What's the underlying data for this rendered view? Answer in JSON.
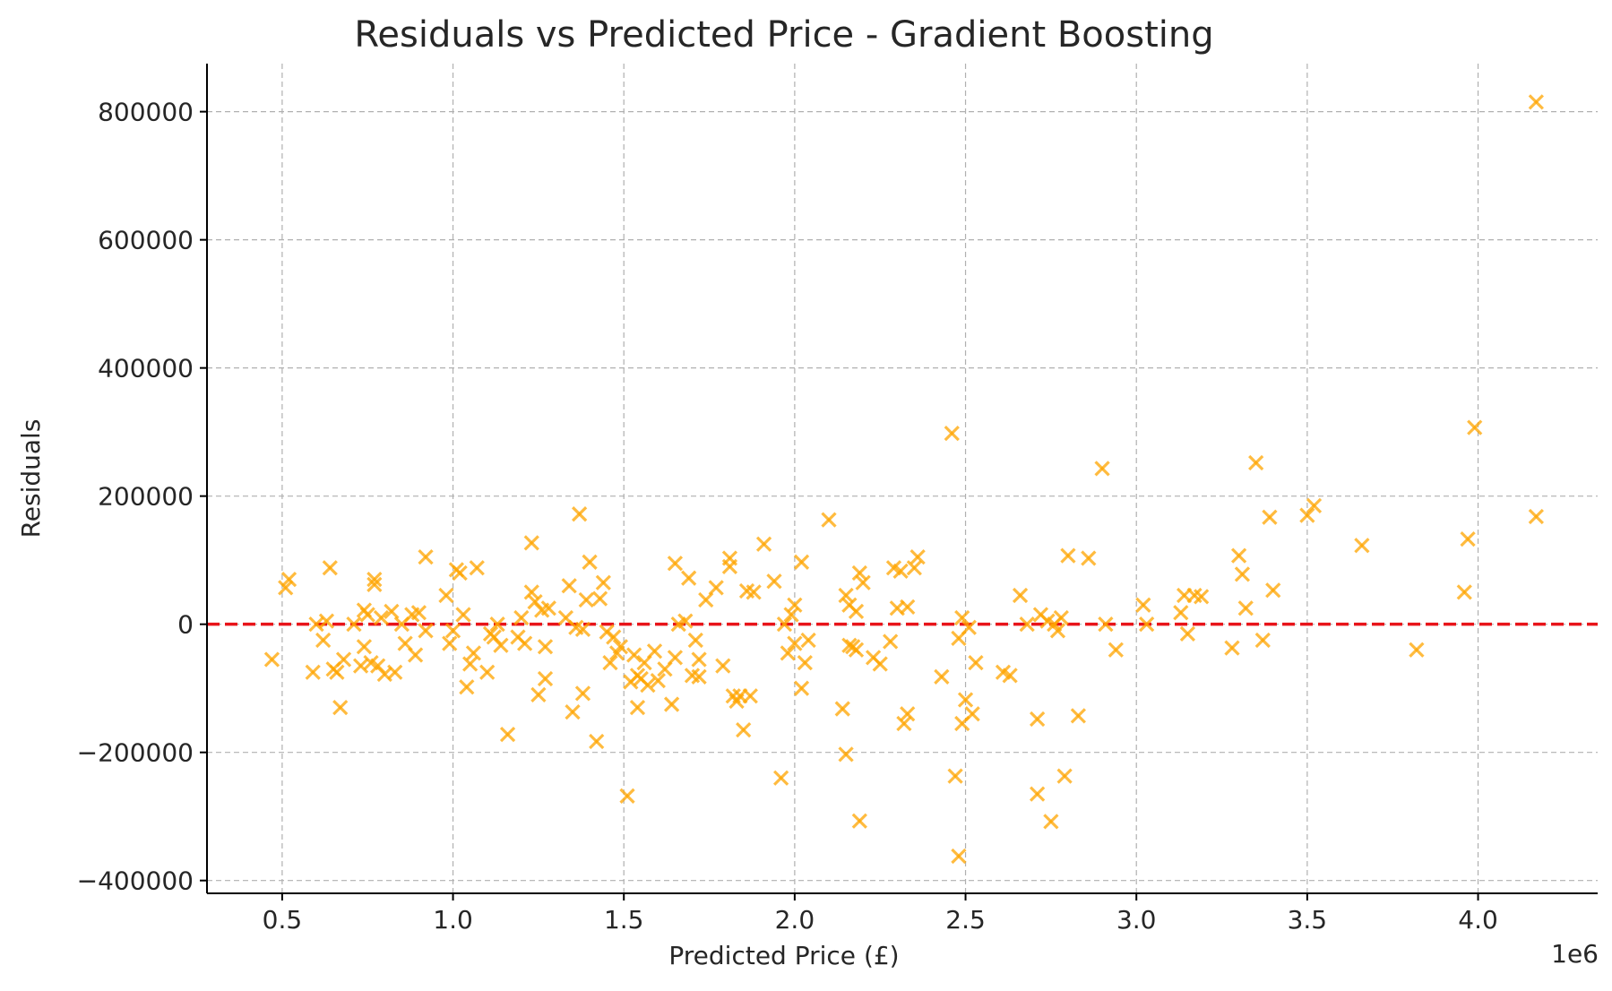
{
  "chart_data": {
    "type": "scatter",
    "title": "Residuals vs Predicted Price - Gradient Boosting",
    "xlabel": "Predicted Price (£)",
    "ylabel": "Residuals",
    "x_offset_label": "1e6",
    "x_multiplier": 1000000,
    "xlim": [
      0.28,
      4.35
    ],
    "ylim": [
      -420000,
      875000
    ],
    "x_ticks": [
      0.5,
      1.0,
      1.5,
      2.0,
      2.5,
      3.0,
      3.5,
      4.0
    ],
    "x_tick_labels": [
      "0.5",
      "1.0",
      "1.5",
      "2.0",
      "2.5",
      "3.0",
      "3.5",
      "4.0"
    ],
    "y_ticks": [
      -400000,
      -200000,
      0,
      200000,
      400000,
      600000,
      800000
    ],
    "y_tick_labels": [
      "−400000",
      "−200000",
      "0",
      "200000",
      "400000",
      "600000",
      "800000"
    ],
    "grid": true,
    "marker": "x",
    "marker_color": "#FFA500",
    "reference_line": {
      "y": 0,
      "color": "#E8141A",
      "style": "dashed"
    },
    "points": [
      [
        0.47,
        -55000
      ],
      [
        0.51,
        57000
      ],
      [
        0.52,
        70000
      ],
      [
        0.59,
        -75000
      ],
      [
        0.6,
        0
      ],
      [
        0.62,
        -25000
      ],
      [
        0.63,
        5000
      ],
      [
        0.64,
        88000
      ],
      [
        0.65,
        -70000
      ],
      [
        0.66,
        -75000
      ],
      [
        0.67,
        -130000
      ],
      [
        0.68,
        -55000
      ],
      [
        0.71,
        0
      ],
      [
        0.73,
        -65000
      ],
      [
        0.74,
        22000
      ],
      [
        0.74,
        -35000
      ],
      [
        0.75,
        15000
      ],
      [
        0.76,
        -60000
      ],
      [
        0.77,
        70000
      ],
      [
        0.77,
        62000
      ],
      [
        0.78,
        -65000
      ],
      [
        0.79,
        10000
      ],
      [
        0.8,
        -78000
      ],
      [
        0.82,
        20000
      ],
      [
        0.83,
        -75000
      ],
      [
        0.85,
        0
      ],
      [
        0.86,
        -30000
      ],
      [
        0.88,
        15000
      ],
      [
        0.89,
        -48000
      ],
      [
        0.9,
        18000
      ],
      [
        0.92,
        105000
      ],
      [
        0.92,
        -10000
      ],
      [
        0.98,
        45000
      ],
      [
        0.99,
        -30000
      ],
      [
        1.0,
        -10000
      ],
      [
        1.01,
        85000
      ],
      [
        1.02,
        80000
      ],
      [
        1.03,
        15000
      ],
      [
        1.04,
        -98000
      ],
      [
        1.05,
        -62000
      ],
      [
        1.06,
        -45000
      ],
      [
        1.07,
        88000
      ],
      [
        1.1,
        -75000
      ],
      [
        1.11,
        -15000
      ],
      [
        1.12,
        -20000
      ],
      [
        1.13,
        0
      ],
      [
        1.14,
        -33000
      ],
      [
        1.16,
        -172000
      ],
      [
        1.19,
        -20000
      ],
      [
        1.2,
        10000
      ],
      [
        1.21,
        -30000
      ],
      [
        1.23,
        50000
      ],
      [
        1.23,
        127000
      ],
      [
        1.24,
        35000
      ],
      [
        1.25,
        -110000
      ],
      [
        1.26,
        22000
      ],
      [
        1.27,
        -85000
      ],
      [
        1.27,
        -35000
      ],
      [
        1.28,
        25000
      ],
      [
        1.33,
        10000
      ],
      [
        1.34,
        60000
      ],
      [
        1.35,
        -137000
      ],
      [
        1.36,
        -5000
      ],
      [
        1.37,
        172000
      ],
      [
        1.38,
        -8000
      ],
      [
        1.38,
        -108000
      ],
      [
        1.39,
        38000
      ],
      [
        1.4,
        97000
      ],
      [
        1.42,
        -183000
      ],
      [
        1.43,
        40000
      ],
      [
        1.44,
        65000
      ],
      [
        1.45,
        -12000
      ],
      [
        1.46,
        -60000
      ],
      [
        1.47,
        -20000
      ],
      [
        1.48,
        -45000
      ],
      [
        1.49,
        -35000
      ],
      [
        1.51,
        -268000
      ],
      [
        1.52,
        -90000
      ],
      [
        1.53,
        -48000
      ],
      [
        1.54,
        -130000
      ],
      [
        1.54,
        -80000
      ],
      [
        1.55,
        -85000
      ],
      [
        1.56,
        -60000
      ],
      [
        1.57,
        -95000
      ],
      [
        1.59,
        -42000
      ],
      [
        1.6,
        -88000
      ],
      [
        1.62,
        -70000
      ],
      [
        1.64,
        -125000
      ],
      [
        1.65,
        -52000
      ],
      [
        1.65,
        95000
      ],
      [
        1.66,
        0
      ],
      [
        1.68,
        5000
      ],
      [
        1.69,
        72000
      ],
      [
        1.7,
        -80000
      ],
      [
        1.71,
        -25000
      ],
      [
        1.72,
        -82000
      ],
      [
        1.72,
        -55000
      ],
      [
        1.74,
        38000
      ],
      [
        1.77,
        57000
      ],
      [
        1.79,
        -65000
      ],
      [
        1.81,
        103000
      ],
      [
        1.81,
        90000
      ],
      [
        1.82,
        -112000
      ],
      [
        1.83,
        -120000
      ],
      [
        1.84,
        -112000
      ],
      [
        1.85,
        -165000
      ],
      [
        1.86,
        52000
      ],
      [
        1.87,
        -112000
      ],
      [
        1.88,
        50000
      ],
      [
        1.91,
        125000
      ],
      [
        1.94,
        67000
      ],
      [
        1.96,
        -240000
      ],
      [
        1.97,
        0
      ],
      [
        1.98,
        -45000
      ],
      [
        1.99,
        15000
      ],
      [
        2.0,
        -30000
      ],
      [
        2.0,
        30000
      ],
      [
        2.02,
        -100000
      ],
      [
        2.02,
        97000
      ],
      [
        2.03,
        -60000
      ],
      [
        2.04,
        -25000
      ],
      [
        2.1,
        163000
      ],
      [
        2.14,
        -132000
      ],
      [
        2.15,
        45000
      ],
      [
        2.15,
        -203000
      ],
      [
        2.16,
        30000
      ],
      [
        2.16,
        -33000
      ],
      [
        2.17,
        -35000
      ],
      [
        2.18,
        20000
      ],
      [
        2.18,
        -40000
      ],
      [
        2.19,
        80000
      ],
      [
        2.19,
        -307000
      ],
      [
        2.2,
        65000
      ],
      [
        2.23,
        -52000
      ],
      [
        2.25,
        -62000
      ],
      [
        2.28,
        -27000
      ],
      [
        2.29,
        88000
      ],
      [
        2.3,
        25000
      ],
      [
        2.31,
        83000
      ],
      [
        2.32,
        -155000
      ],
      [
        2.33,
        -140000
      ],
      [
        2.33,
        27000
      ],
      [
        2.35,
        88000
      ],
      [
        2.36,
        105000
      ],
      [
        2.43,
        -82000
      ],
      [
        2.46,
        298000
      ],
      [
        2.47,
        -237000
      ],
      [
        2.48,
        -22000
      ],
      [
        2.48,
        -362000
      ],
      [
        2.49,
        -155000
      ],
      [
        2.49,
        10000
      ],
      [
        2.5,
        -118000
      ],
      [
        2.51,
        -5000
      ],
      [
        2.52,
        -140000
      ],
      [
        2.53,
        -60000
      ],
      [
        2.61,
        -75000
      ],
      [
        2.63,
        -80000
      ],
      [
        2.66,
        45000
      ],
      [
        2.68,
        0
      ],
      [
        2.71,
        -148000
      ],
      [
        2.71,
        -265000
      ],
      [
        2.72,
        15000
      ],
      [
        2.74,
        5000
      ],
      [
        2.75,
        -308000
      ],
      [
        2.76,
        0
      ],
      [
        2.77,
        -10000
      ],
      [
        2.78,
        10000
      ],
      [
        2.79,
        -237000
      ],
      [
        2.8,
        107000
      ],
      [
        2.83,
        -143000
      ],
      [
        2.86,
        103000
      ],
      [
        2.9,
        243000
      ],
      [
        2.91,
        0
      ],
      [
        2.94,
        -40000
      ],
      [
        3.02,
        30000
      ],
      [
        3.03,
        0
      ],
      [
        3.13,
        18000
      ],
      [
        3.14,
        45000
      ],
      [
        3.15,
        -15000
      ],
      [
        3.17,
        45000
      ],
      [
        3.19,
        43000
      ],
      [
        3.28,
        -37000
      ],
      [
        3.3,
        107000
      ],
      [
        3.31,
        78000
      ],
      [
        3.32,
        25000
      ],
      [
        3.35,
        252000
      ],
      [
        3.37,
        -25000
      ],
      [
        3.39,
        167000
      ],
      [
        3.4,
        53000
      ],
      [
        3.5,
        170000
      ],
      [
        3.52,
        185000
      ],
      [
        3.66,
        123000
      ],
      [
        3.82,
        -40000
      ],
      [
        3.96,
        50000
      ],
      [
        3.97,
        133000
      ],
      [
        3.99,
        307000
      ],
      [
        4.17,
        168000
      ],
      [
        4.17,
        815000
      ]
    ]
  }
}
